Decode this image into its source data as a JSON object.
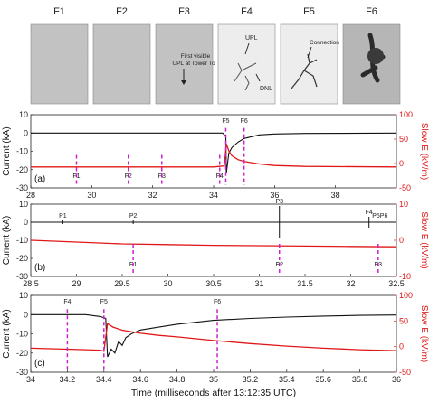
{
  "frames": [
    {
      "label": "F1",
      "style": "noise",
      "annotations": []
    },
    {
      "label": "F2",
      "style": "noise",
      "annotations": []
    },
    {
      "label": "F3",
      "style": "noise",
      "annotations": [
        "First visible",
        "UPL at Tower To"
      ]
    },
    {
      "label": "F4",
      "style": "light",
      "annotations": [
        "UPL",
        "DNL"
      ]
    },
    {
      "label": "F5",
      "style": "light",
      "annotations": [
        "Connection"
      ]
    },
    {
      "label": "F6",
      "style": "dark",
      "annotations": []
    }
  ],
  "colors": {
    "current": "#111111",
    "slowE": "#e01818",
    "marker": "#cc22cc",
    "rightAxis": "#e01818"
  },
  "chart_data": [
    {
      "type": "line",
      "panel_label": "(a)",
      "xlim": [
        28,
        40
      ],
      "xticks": [
        28,
        30,
        32,
        34,
        36,
        38
      ],
      "ylabel": "Current (kA)",
      "ylim": [
        -30,
        10
      ],
      "yticks": [
        -30,
        -20,
        -10,
        0,
        10
      ],
      "y2label": "Slow E (kV/m)",
      "y2lim": [
        -50,
        100
      ],
      "y2ticks": [
        -50,
        0,
        50,
        100
      ],
      "series": [
        {
          "axis": "left",
          "color": "current",
          "points": [
            [
              28,
              0
            ],
            [
              34.0,
              0
            ],
            [
              34.3,
              0
            ],
            [
              34.4,
              -2
            ],
            [
              34.42,
              -22
            ],
            [
              34.5,
              -11
            ],
            [
              34.6,
              -8
            ],
            [
              34.8,
              -5
            ],
            [
              35.0,
              -3
            ],
            [
              35.5,
              -1
            ],
            [
              36,
              -0.5
            ],
            [
              37,
              -0.2
            ],
            [
              40,
              0
            ]
          ]
        },
        {
          "axis": "right",
          "color": "slowE",
          "points": [
            [
              28,
              -7
            ],
            [
              34.0,
              -7
            ],
            [
              34.2,
              -6
            ],
            [
              34.35,
              -5
            ],
            [
              34.42,
              40
            ],
            [
              34.5,
              26
            ],
            [
              34.6,
              16
            ],
            [
              34.8,
              8
            ],
            [
              35.0,
              4
            ],
            [
              35.5,
              -1
            ],
            [
              36,
              -4
            ],
            [
              37,
              -6
            ],
            [
              40,
              -7
            ]
          ]
        }
      ],
      "markers": [
        {
          "x": 29.5,
          "label": "F1",
          "pos": "bottom"
        },
        {
          "x": 31.2,
          "label": "F2",
          "pos": "bottom"
        },
        {
          "x": 32.3,
          "label": "F3",
          "pos": "bottom"
        },
        {
          "x": 34.2,
          "label": "F4",
          "pos": "bottom"
        },
        {
          "x": 34.4,
          "label": "F5",
          "pos": "top"
        },
        {
          "x": 35.0,
          "label": "F6",
          "pos": "top"
        }
      ]
    },
    {
      "type": "line",
      "panel_label": "(b)",
      "xlim": [
        28.5,
        32.5
      ],
      "xticks": [
        28.5,
        29,
        29.5,
        30,
        30.5,
        31,
        31.5,
        32,
        32.5
      ],
      "ylabel": "Current (kA)",
      "ylim": [
        -30,
        10
      ],
      "yticks": [
        -30,
        -20,
        -10,
        0,
        10
      ],
      "y2label": "Slow E (kV/m)",
      "y2lim": [
        -10,
        10
      ],
      "y2ticks": [
        -10,
        0,
        10
      ],
      "series": [
        {
          "axis": "left",
          "color": "current",
          "points": [
            [
              28.5,
              0
            ],
            [
              32.5,
              0
            ]
          ]
        },
        {
          "axis": "right",
          "color": "slowE",
          "points": [
            [
              28.5,
              0
            ],
            [
              29.0,
              -0.5
            ],
            [
              29.5,
              -1
            ],
            [
              30.0,
              -1.2
            ],
            [
              30.5,
              -1.4
            ],
            [
              31.0,
              -1.5
            ],
            [
              31.5,
              -1.6
            ],
            [
              32.0,
              -1.7
            ],
            [
              32.5,
              -1.8
            ]
          ]
        }
      ],
      "spikes": [
        {
          "x": 28.85,
          "label": "P1",
          "low": -1,
          "high": 1
        },
        {
          "x": 29.62,
          "label": "P2",
          "low": -1,
          "high": 1
        },
        {
          "x": 31.22,
          "label": "P3",
          "low": -9,
          "high": 9
        },
        {
          "x": 32.2,
          "label": "F4",
          "low": -3,
          "high": 3
        }
      ],
      "extra_labels": [
        {
          "x": 32.32,
          "label": "P5P6"
        }
      ],
      "markers": [
        {
          "x": 29.62,
          "label": "E1",
          "pos": "bottom"
        },
        {
          "x": 31.22,
          "label": "E2",
          "pos": "bottom"
        },
        {
          "x": 32.3,
          "label": "E3",
          "pos": "bottom"
        }
      ]
    },
    {
      "type": "line",
      "panel_label": "(c)",
      "xlim": [
        34,
        36
      ],
      "xticks": [
        34,
        34.2,
        34.4,
        34.6,
        34.8,
        35,
        35.2,
        35.4,
        35.6,
        35.8,
        36
      ],
      "xlabel": "Time (milliseconds after 13:12:35 UTC)",
      "ylabel": "Current (kA)",
      "ylim": [
        -30,
        10
      ],
      "yticks": [
        -30,
        -20,
        -10,
        0,
        10
      ],
      "y2label": "Slow E (kV/m)",
      "y2lim": [
        -50,
        100
      ],
      "y2ticks": [
        -50,
        0,
        50,
        100
      ],
      "series": [
        {
          "axis": "left",
          "color": "current",
          "points": [
            [
              34,
              0
            ],
            [
              34.3,
              0
            ],
            [
              34.38,
              -1
            ],
            [
              34.41,
              -2
            ],
            [
              34.42,
              -22
            ],
            [
              34.44,
              -18
            ],
            [
              34.46,
              -20
            ],
            [
              34.48,
              -14
            ],
            [
              34.5,
              -16
            ],
            [
              34.52,
              -12
            ],
            [
              34.55,
              -10
            ],
            [
              34.6,
              -8
            ],
            [
              34.7,
              -6.5
            ],
            [
              34.8,
              -5
            ],
            [
              35.0,
              -3
            ],
            [
              35.2,
              -2
            ],
            [
              35.4,
              -1.3
            ],
            [
              35.6,
              -0.8
            ],
            [
              35.8,
              -0.4
            ],
            [
              36,
              -0.2
            ]
          ]
        },
        {
          "axis": "right",
          "color": "slowE",
          "points": [
            [
              34,
              -3
            ],
            [
              34.2,
              -5
            ],
            [
              34.38,
              -7
            ],
            [
              34.4,
              -9
            ],
            [
              34.42,
              45
            ],
            [
              34.45,
              38
            ],
            [
              34.5,
              32
            ],
            [
              34.6,
              26
            ],
            [
              34.7,
              22
            ],
            [
              34.8,
              19
            ],
            [
              35.0,
              12
            ],
            [
              35.2,
              6
            ],
            [
              35.4,
              1
            ],
            [
              35.6,
              -3
            ],
            [
              35.8,
              -6
            ],
            [
              36,
              -8
            ]
          ]
        }
      ],
      "markers": [
        {
          "x": 34.2,
          "label": "F4",
          "pos": "top"
        },
        {
          "x": 34.4,
          "label": "F5",
          "pos": "top"
        },
        {
          "x": 35.02,
          "label": "F6",
          "pos": "top"
        }
      ]
    }
  ]
}
